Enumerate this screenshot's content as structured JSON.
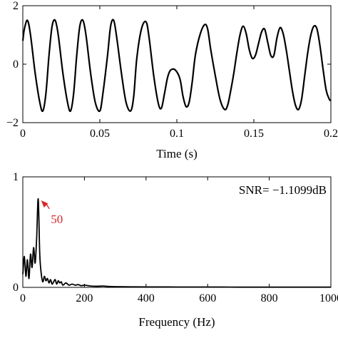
{
  "chart_data": [
    {
      "type": "line",
      "title": "",
      "xlabel": "Time (s)",
      "ylabel": "",
      "xlim": [
        0,
        0.2
      ],
      "ylim": [
        -2,
        2
      ],
      "xticks": [
        0,
        0.05,
        0.1,
        0.15,
        0.2
      ],
      "xtick_labels": [
        "0",
        "0.05",
        "0.1",
        "0.15",
        "0.2"
      ],
      "yticks": [
        -2,
        0,
        2
      ],
      "ytick_labels": [
        "−2",
        "0",
        "2"
      ],
      "grid": false,
      "color": "#000000",
      "series": [
        {
          "x": [
            0,
            0.001,
            0.003,
            0.005,
            0.008,
            0.011,
            0.013,
            0.015,
            0.017,
            0.019,
            0.021,
            0.023,
            0.026,
            0.029,
            0.031,
            0.033,
            0.035,
            0.037,
            0.039,
            0.041,
            0.044,
            0.047,
            0.05,
            0.052,
            0.055,
            0.057,
            0.059,
            0.061,
            0.064,
            0.067,
            0.07,
            0.072,
            0.074,
            0.077,
            0.08,
            0.082,
            0.085,
            0.088,
            0.09,
            0.092,
            0.094,
            0.096,
            0.099,
            0.102,
            0.104,
            0.106,
            0.108,
            0.11,
            0.112,
            0.115,
            0.118,
            0.12,
            0.122,
            0.125,
            0.128,
            0.131,
            0.133,
            0.135,
            0.137,
            0.139,
            0.141,
            0.143,
            0.145,
            0.147,
            0.149,
            0.151,
            0.153,
            0.155,
            0.157,
            0.159,
            0.161,
            0.163,
            0.165,
            0.167,
            0.169,
            0.171,
            0.173,
            0.175,
            0.177,
            0.179,
            0.181,
            0.183,
            0.185,
            0.187,
            0.189,
            0.191,
            0.193,
            0.195,
            0.197,
            0.199,
            0.2
          ],
          "y": [
            0.8,
            1.2,
            1.5,
            1.0,
            -0.3,
            -1.3,
            -1.6,
            -1.0,
            0.3,
            1.3,
            1.5,
            1.0,
            -0.3,
            -1.3,
            -1.6,
            -1.0,
            0.3,
            1.3,
            1.5,
            1.0,
            -0.3,
            -1.3,
            -1.6,
            -1.0,
            0.3,
            1.3,
            1.5,
            0.9,
            -0.3,
            -1.3,
            -1.6,
            -1.1,
            0.2,
            1.2,
            1.45,
            0.9,
            -0.4,
            -1.35,
            -1.5,
            -1.0,
            -0.45,
            -0.2,
            -0.2,
            -0.5,
            -1.1,
            -1.45,
            -1.3,
            -0.6,
            0.3,
            1.0,
            1.35,
            1.2,
            0.5,
            -0.4,
            -1.2,
            -1.55,
            -1.4,
            -0.9,
            -0.3,
            0.4,
            1.0,
            1.3,
            1.05,
            0.5,
            0.2,
            0.3,
            0.7,
            1.1,
            1.2,
            0.75,
            0.3,
            0.3,
            0.9,
            1.25,
            1.05,
            0.5,
            -0.2,
            -0.9,
            -1.4,
            -1.55,
            -1.2,
            -0.4,
            0.4,
            1.0,
            1.3,
            1.2,
            0.6,
            -0.2,
            -0.9,
            -1.2,
            -1.25
          ]
        }
      ]
    },
    {
      "type": "line",
      "title": "",
      "xlabel": "Frequency (Hz)",
      "ylabel": "",
      "xlim": [
        0,
        1000
      ],
      "ylim": [
        0,
        1
      ],
      "xticks": [
        0,
        200,
        400,
        600,
        800,
        1000
      ],
      "xtick_labels": [
        "0",
        "200",
        "400",
        "600",
        "800",
        "1000"
      ],
      "yticks": [
        0,
        1
      ],
      "ytick_labels": [
        "0",
        "1"
      ],
      "grid": false,
      "color": "#000000",
      "annotations": [
        {
          "text": "SNR=  −1.1099dB",
          "color": "#000000",
          "placement": "top-right"
        },
        {
          "text": "50",
          "color": "#d9262b",
          "point_x": 50,
          "point_y": 0.8,
          "text_x": 100,
          "text_y": 0.62
        }
      ],
      "series": [
        {
          "x": [
            0,
            5,
            10,
            15,
            20,
            25,
            30,
            35,
            40,
            45,
            50,
            55,
            60,
            65,
            70,
            75,
            80,
            85,
            90,
            95,
            100,
            105,
            110,
            115,
            120,
            125,
            130,
            140,
            150,
            160,
            170,
            180,
            190,
            200,
            220,
            240,
            260,
            280,
            300,
            350,
            400,
            450,
            500,
            550,
            600,
            650,
            700,
            750,
            800,
            850,
            900,
            950,
            1000
          ],
          "y": [
            0.12,
            0.28,
            0.1,
            0.25,
            0.08,
            0.3,
            0.18,
            0.36,
            0.22,
            0.45,
            0.8,
            0.3,
            0.12,
            0.05,
            0.1,
            0.06,
            0.08,
            0.04,
            0.07,
            0.03,
            0.05,
            0.07,
            0.03,
            0.06,
            0.04,
            0.05,
            0.02,
            0.04,
            0.02,
            0.03,
            0.02,
            0.025,
            0.015,
            0.02,
            0.012,
            0.01,
            0.012,
            0.008,
            0.006,
            0.005,
            0.004,
            0.004,
            0.003,
            0.003,
            0.003,
            0.003,
            0.002,
            0.002,
            0.002,
            0.002,
            0.002,
            0.002,
            0.002
          ]
        }
      ]
    }
  ]
}
